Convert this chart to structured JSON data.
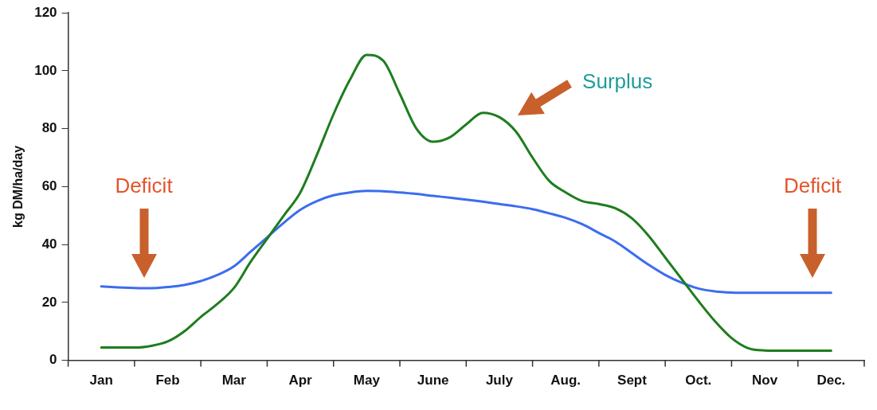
{
  "chart_data": {
    "type": "line",
    "ylabel": "kg DM/ha/day",
    "categories": [
      null,
      null,
      "Jan",
      null,
      null,
      null,
      "Feb",
      null,
      null,
      null,
      "Mar",
      null,
      null,
      null,
      "Apr",
      null,
      null,
      null,
      "May",
      null,
      null,
      null,
      "June",
      null,
      null,
      null,
      "July",
      null,
      null,
      null,
      "Aug.",
      null,
      null,
      null,
      "Sept",
      null,
      null,
      null,
      "Oct.",
      null,
      null,
      null,
      "Nov",
      null,
      null,
      null,
      "Dec.",
      null,
      null
    ],
    "ylim": [
      0,
      120
    ],
    "yticks": [
      0,
      20,
      40,
      60,
      80,
      100,
      120
    ],
    "grid": false,
    "legend": false,
    "marker": "none",
    "line_style": "solid",
    "series": [
      {
        "color": "#1e7d1e",
        "values": [
          null,
          null,
          4.4,
          4.4,
          4.4,
          5,
          6.5,
          10,
          15,
          19.5,
          25,
          34,
          42,
          50,
          58,
          71,
          85,
          97,
          105.5,
          103.5,
          92,
          80,
          75.5,
          77,
          81.5,
          85.5,
          84,
          79,
          70,
          62,
          58,
          55,
          54,
          52.5,
          49,
          43,
          35.5,
          28,
          20.5,
          13.5,
          7.7,
          4.2,
          3.4,
          3.3,
          3.3,
          3.3,
          3.3,
          null,
          null
        ]
      },
      {
        "color": "#3c6cf0",
        "values": [
          null,
          null,
          25.5,
          25.2,
          25,
          24.9,
          25.3,
          26,
          27.4,
          29.5,
          32.5,
          37.5,
          42.5,
          47.5,
          52,
          55,
          57,
          58,
          58.5,
          58.4,
          58,
          57.5,
          56.8,
          56.2,
          55.5,
          54.8,
          54,
          53.2,
          52.2,
          50.8,
          49.2,
          47,
          44,
          41,
          37,
          33,
          29.5,
          26.8,
          24.8,
          23.8,
          23.4,
          23.3,
          23.3,
          23.3,
          23.3,
          23.3,
          23.3,
          null,
          null
        ]
      }
    ],
    "annotations": [
      "Surplus",
      "Deficit",
      "Deficit"
    ]
  }
}
